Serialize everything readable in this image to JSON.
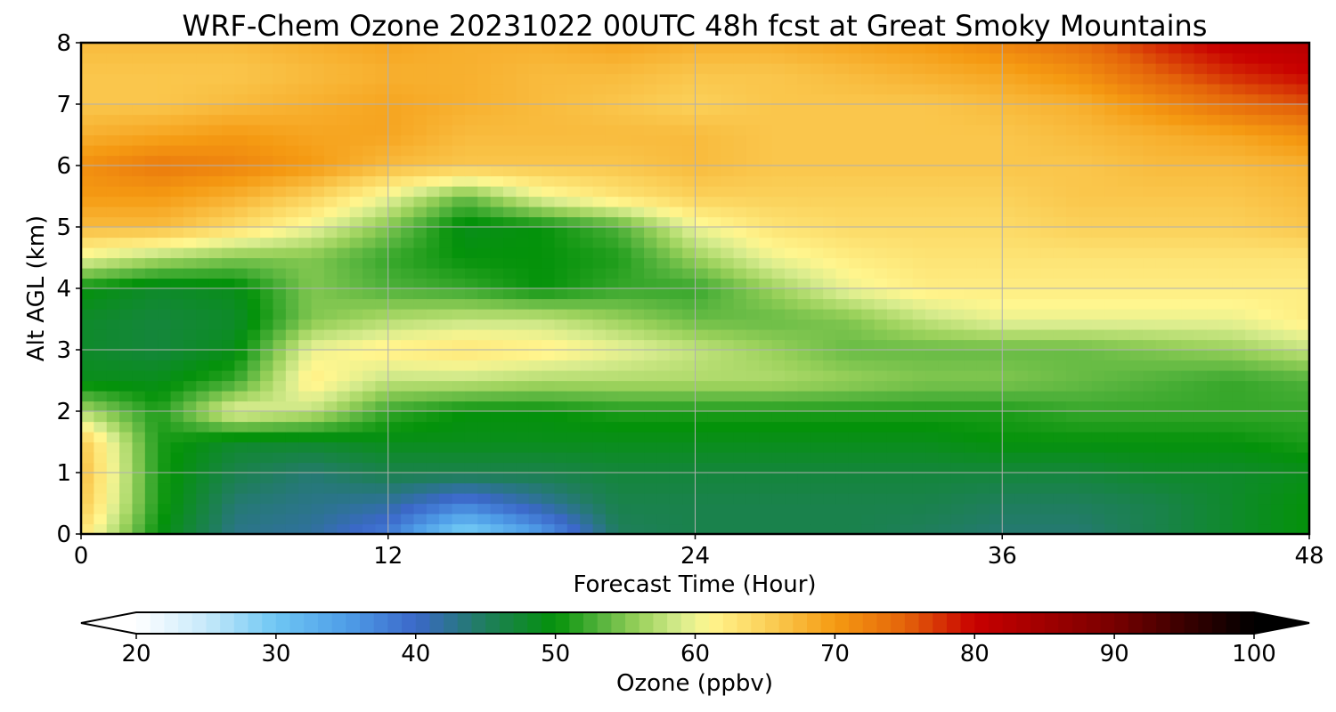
{
  "chart_data": {
    "type": "heatmap",
    "title": "WRF-Chem Ozone  20231022 00UTC 48h fcst at Great Smoky Mountains",
    "xlabel": "Forecast Time (Hour)",
    "ylabel": "Alt AGL (km)",
    "xlim": [
      0,
      48
    ],
    "ylim": [
      0,
      8
    ],
    "xticks": [
      0,
      12,
      24,
      36,
      48
    ],
    "yticks": [
      0,
      1,
      2,
      3,
      4,
      5,
      6,
      7,
      8
    ],
    "grid": true,
    "x_hours": [
      0,
      3,
      6,
      9,
      12,
      15,
      18,
      21,
      24,
      27,
      30,
      33,
      36,
      39,
      42,
      45,
      48
    ],
    "y_km": [
      0,
      0.5,
      1,
      1.5,
      2,
      2.5,
      3,
      3.5,
      4,
      4.5,
      5,
      5.5,
      6,
      6.5,
      7,
      7.5,
      8
    ],
    "values_ppbv": [
      [
        63,
        50,
        43,
        42,
        38,
        28,
        35,
        45,
        46,
        46,
        46,
        45,
        44,
        44,
        46,
        48,
        50
      ],
      [
        66,
        51,
        44,
        43,
        42,
        38,
        42,
        46,
        46,
        46,
        46,
        46,
        45,
        45,
        46,
        48,
        50
      ],
      [
        67,
        51,
        46,
        44,
        46,
        46,
        46,
        47,
        47,
        47,
        47,
        47,
        47,
        47,
        48,
        48,
        49
      ],
      [
        66,
        51,
        48,
        48,
        49,
        49,
        49,
        49,
        49,
        49,
        49,
        49,
        50,
        50,
        50,
        50,
        51
      ],
      [
        57,
        51,
        60,
        58,
        52,
        50,
        50,
        51,
        51,
        51,
        51,
        51,
        51,
        52,
        52,
        52,
        52
      ],
      [
        49,
        49,
        52,
        62,
        58,
        58,
        57,
        57,
        57,
        57,
        56,
        55,
        55,
        54,
        53,
        52,
        53
      ],
      [
        48,
        47,
        49,
        60,
        62,
        63,
        62,
        60,
        58,
        56,
        54,
        54,
        54,
        54,
        55,
        56,
        58
      ],
      [
        48,
        47,
        48,
        55,
        57,
        58,
        58,
        56,
        54,
        54,
        55,
        58,
        60,
        60,
        60,
        60,
        62
      ],
      [
        50,
        48,
        49,
        55,
        53,
        52,
        50,
        52,
        52,
        56,
        60,
        62,
        62,
        62,
        62,
        62,
        62
      ],
      [
        60,
        57,
        55,
        55,
        52,
        50,
        50,
        51,
        56,
        60,
        62,
        63,
        63,
        63,
        63,
        63,
        63
      ],
      [
        67,
        67,
        64,
        60,
        55,
        49,
        50,
        53,
        60,
        63,
        64,
        64,
        64,
        65,
        65,
        65,
        66
      ],
      [
        70,
        70,
        68,
        65,
        60,
        54,
        60,
        63,
        65,
        65,
        65,
        65,
        65,
        66,
        66,
        66,
        67
      ],
      [
        71,
        73,
        72,
        70,
        67,
        66,
        66,
        66,
        67,
        66,
        66,
        66,
        66,
        66,
        67,
        67,
        68
      ],
      [
        68,
        69,
        70,
        69,
        69,
        67,
        67,
        67,
        67,
        66,
        66,
        66,
        66,
        67,
        68,
        69,
        71
      ],
      [
        66,
        66,
        67,
        68,
        69,
        68,
        67,
        66,
        65,
        66,
        66,
        66,
        67,
        68,
        71,
        74,
        76
      ],
      [
        66,
        66,
        66,
        67,
        68,
        68,
        67,
        67,
        66,
        66,
        67,
        68,
        69,
        71,
        75,
        78,
        80
      ],
      [
        67,
        67,
        67,
        68,
        69,
        68,
        68,
        69,
        68,
        68,
        69,
        70,
        72,
        74,
        78,
        81,
        82
      ]
    ],
    "colorbar": {
      "label": "Ozone  (ppbv)",
      "min": 20,
      "max": 100,
      "ticks": [
        20,
        30,
        40,
        50,
        60,
        70,
        80,
        90,
        100
      ],
      "extend": "both",
      "stops": [
        {
          "v": 20,
          "c": "#ffffff"
        },
        {
          "v": 25,
          "c": "#c6e9fa"
        },
        {
          "v": 30,
          "c": "#6ec6f3"
        },
        {
          "v": 35,
          "c": "#4f9ee8"
        },
        {
          "v": 40,
          "c": "#3b68c9"
        },
        {
          "v": 45,
          "c": "#1f7e5c"
        },
        {
          "v": 50,
          "c": "#04920a"
        },
        {
          "v": 53,
          "c": "#4fb13a"
        },
        {
          "v": 56,
          "c": "#9ad15b"
        },
        {
          "v": 59,
          "c": "#d8ec8e"
        },
        {
          "v": 61,
          "c": "#fff68f"
        },
        {
          "v": 65,
          "c": "#fbd15a"
        },
        {
          "v": 70,
          "c": "#f59a12"
        },
        {
          "v": 75,
          "c": "#e4640a"
        },
        {
          "v": 80,
          "c": "#c80000"
        },
        {
          "v": 85,
          "c": "#a00000"
        },
        {
          "v": 90,
          "c": "#780000"
        },
        {
          "v": 95,
          "c": "#3a0000"
        },
        {
          "v": 100,
          "c": "#000000"
        }
      ]
    }
  }
}
